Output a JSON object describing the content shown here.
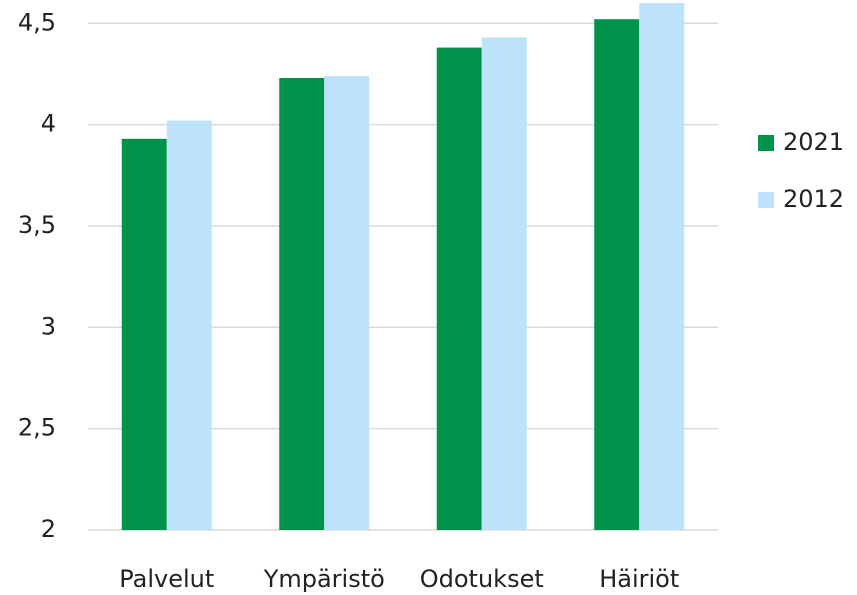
{
  "chart_data": {
    "type": "bar",
    "categories": [
      "Palvelut",
      "Ympäristö",
      "Odotukset",
      "Häiriöt"
    ],
    "series": [
      {
        "name": "2021",
        "color": "#00914a",
        "values": [
          3.93,
          4.23,
          4.38,
          4.52
        ]
      },
      {
        "name": "2012",
        "color": "#bde3fb",
        "values": [
          4.02,
          4.24,
          4.43,
          4.6
        ]
      }
    ],
    "ylim": [
      2,
      4.6
    ],
    "yticks": [
      2,
      {
        "value": 2.5,
        "label": "2,5"
      },
      3,
      {
        "value": 3.5,
        "label": "3,5"
      },
      4,
      {
        "value": 4.5,
        "label": "4,5"
      }
    ],
    "grid": true,
    "legend": "right"
  }
}
